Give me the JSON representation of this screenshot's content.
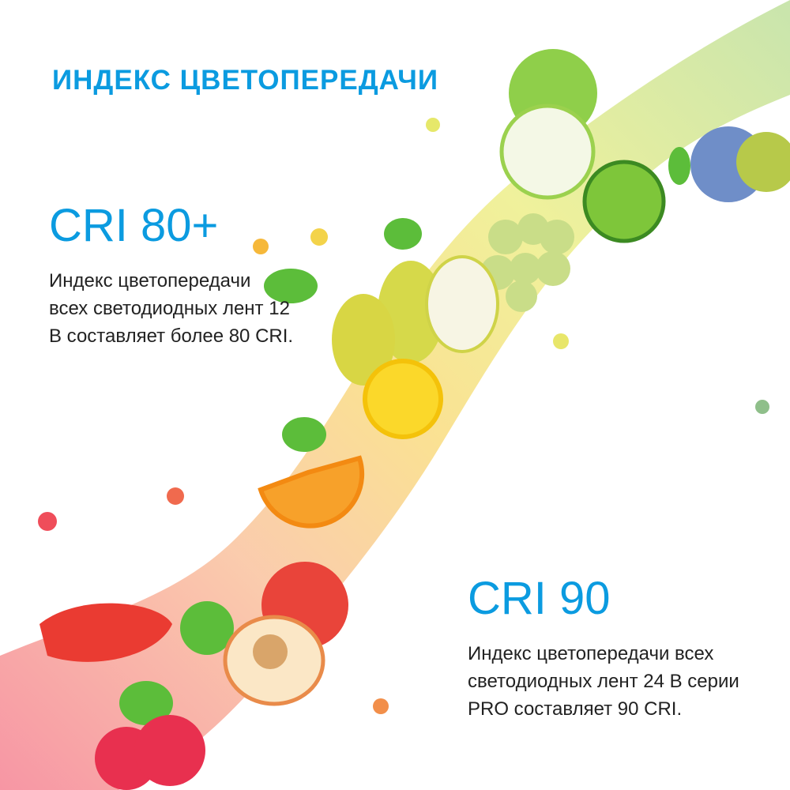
{
  "title": "ИНДЕКС ЦВЕТОПЕРЕДАЧИ",
  "blocks": [
    {
      "heading": "CRI 80+",
      "text": "Индекс цветопередачи всех светодиодных лент 12 В составляет более 80 CRI."
    },
    {
      "heading": "CRI 90",
      "text": "Индекс цветопередачи всех светодиодных лент 24 В серии PRO составляет 90 CRI."
    }
  ],
  "colors": {
    "accent": "#0b9be0",
    "text": "#222222"
  }
}
